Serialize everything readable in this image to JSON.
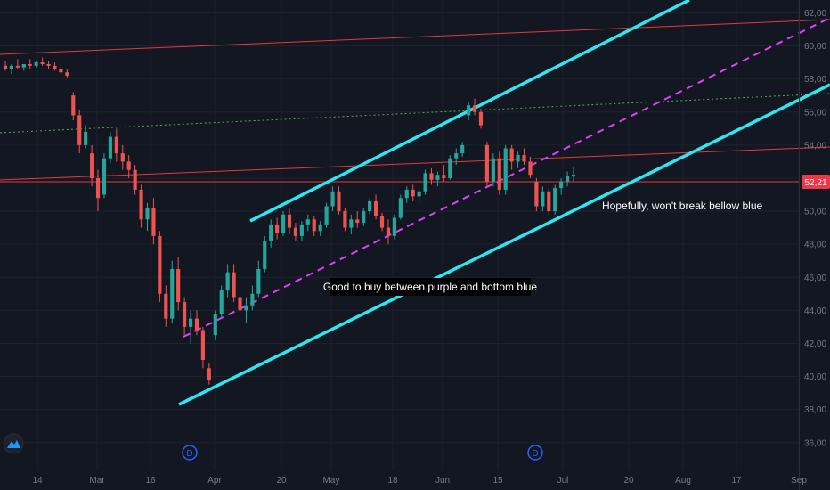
{
  "chart_data": {
    "type": "candlestick",
    "yaxis": {
      "ticks": [
        "36,00",
        "38,00",
        "40,00",
        "42,00",
        "44,00",
        "46,00",
        "48,00",
        "50,00",
        "52,00",
        "54,00",
        "56,00",
        "58,00",
        "60,00",
        "62,00"
      ],
      "ylim": [
        35.2,
        62.8
      ]
    },
    "xaxis": {
      "ticks": [
        "14",
        "Mar",
        "16",
        "Apr",
        "20",
        "May",
        "18",
        "Jun",
        "15",
        "Jul",
        "20",
        "Aug",
        "17",
        "Sep"
      ]
    },
    "current_price": {
      "label": "52,21",
      "value": 52.21,
      "color": "#f23645"
    },
    "colors": {
      "up": "#26a69a",
      "down": "#ef5350",
      "channel": "#2ee6f0",
      "midline": "#e040fb",
      "resistance": "#e53935",
      "green_dotted": "#4caf50"
    },
    "annotations": [
      {
        "text": "Good to buy between purple and bottom blue",
        "style": "boxed"
      },
      {
        "text": "Hopefully, won't break bellow blue",
        "style": "plain"
      }
    ],
    "markers": [
      "D",
      "D"
    ],
    "candles": [
      [
        58.8,
        59.1,
        58.5,
        58.6
      ],
      [
        58.6,
        58.9,
        58.3,
        58.8
      ],
      [
        58.8,
        59.2,
        58.6,
        58.7
      ],
      [
        58.7,
        58.9,
        58.5,
        58.9
      ],
      [
        58.9,
        59.2,
        58.6,
        58.8
      ],
      [
        58.8,
        59.1,
        58.7,
        59.0
      ],
      [
        59.0,
        59.3,
        58.8,
        58.9
      ],
      [
        58.9,
        59.1,
        58.6,
        58.8
      ],
      [
        58.8,
        59.0,
        58.5,
        58.6
      ],
      [
        58.6,
        58.9,
        58.3,
        58.4
      ],
      [
        58.4,
        58.6,
        58.1,
        58.2
      ],
      [
        57.0,
        57.2,
        55.5,
        55.8
      ],
      [
        55.8,
        56.1,
        53.5,
        54.0
      ],
      [
        54.0,
        55.2,
        53.8,
        54.8
      ],
      [
        53.5,
        54.0,
        51.5,
        52.0
      ],
      [
        52.0,
        52.5,
        50.0,
        50.8
      ],
      [
        51.0,
        53.5,
        50.8,
        53.2
      ],
      [
        53.2,
        54.8,
        52.9,
        54.5
      ],
      [
        54.5,
        55.0,
        53.0,
        53.5
      ],
      [
        53.5,
        54.0,
        52.5,
        53.0
      ],
      [
        53.0,
        53.4,
        52.0,
        52.5
      ],
      [
        52.5,
        52.8,
        51.0,
        51.3
      ],
      [
        51.3,
        51.6,
        49.0,
        49.5
      ],
      [
        49.5,
        50.5,
        48.8,
        50.2
      ],
      [
        50.2,
        50.8,
        48.0,
        48.5
      ],
      [
        48.5,
        48.8,
        44.5,
        45.0
      ],
      [
        45.0,
        45.5,
        43.0,
        43.5
      ],
      [
        43.5,
        47.0,
        43.2,
        46.5
      ],
      [
        46.5,
        47.2,
        44.0,
        44.5
      ],
      [
        44.5,
        44.8,
        42.5,
        43.0
      ],
      [
        43.0,
        44.0,
        42.0,
        43.5
      ],
      [
        43.5,
        44.0,
        42.5,
        42.8
      ],
      [
        42.8,
        43.0,
        40.5,
        41.0
      ],
      [
        40.5,
        40.8,
        39.5,
        39.8
      ],
      [
        42.5,
        44.0,
        42.2,
        43.8
      ],
      [
        43.8,
        45.5,
        43.5,
        45.2
      ],
      [
        45.2,
        46.8,
        44.8,
        46.3
      ],
      [
        46.3,
        46.8,
        44.5,
        44.8
      ],
      [
        44.8,
        45.0,
        43.5,
        44.0
      ],
      [
        44.0,
        44.8,
        43.2,
        44.3
      ],
      [
        44.3,
        45.5,
        44.0,
        45.0
      ],
      [
        45.0,
        47.0,
        44.8,
        46.5
      ],
      [
        46.5,
        48.5,
        46.3,
        48.2
      ],
      [
        48.2,
        49.5,
        47.8,
        49.2
      ],
      [
        49.2,
        49.6,
        48.3,
        48.7
      ],
      [
        48.7,
        50.0,
        48.5,
        49.8
      ],
      [
        49.8,
        50.2,
        48.6,
        49.0
      ],
      [
        49.0,
        49.3,
        48.2,
        48.5
      ],
      [
        48.5,
        49.4,
        48.2,
        49.2
      ],
      [
        49.2,
        49.8,
        48.8,
        49.5
      ],
      [
        49.5,
        49.7,
        48.5,
        48.8
      ],
      [
        48.8,
        49.4,
        48.5,
        49.2
      ],
      [
        49.2,
        50.5,
        49.0,
        50.3
      ],
      [
        50.3,
        51.5,
        50.0,
        51.2
      ],
      [
        51.2,
        51.5,
        49.8,
        50.0
      ],
      [
        50.0,
        50.2,
        48.8,
        49.0
      ],
      [
        49.0,
        49.8,
        48.6,
        49.5
      ],
      [
        49.5,
        50.0,
        49.0,
        49.3
      ],
      [
        49.3,
        50.2,
        49.1,
        50.0
      ],
      [
        50.0,
        50.8,
        49.8,
        50.6
      ],
      [
        50.6,
        51.0,
        49.5,
        49.7
      ],
      [
        49.7,
        49.9,
        48.8,
        49.0
      ],
      [
        49.0,
        49.5,
        48.0,
        48.5
      ],
      [
        48.5,
        49.8,
        48.3,
        49.6
      ],
      [
        49.6,
        51.0,
        49.5,
        50.8
      ],
      [
        50.8,
        51.5,
        50.5,
        51.3
      ],
      [
        51.3,
        51.6,
        50.6,
        50.9
      ],
      [
        50.9,
        51.4,
        50.5,
        51.2
      ],
      [
        51.2,
        52.5,
        51.0,
        52.3
      ],
      [
        52.3,
        52.6,
        51.6,
        51.9
      ],
      [
        51.9,
        52.4,
        51.5,
        52.2
      ],
      [
        52.2,
        52.8,
        51.8,
        52.0
      ],
      [
        52.0,
        53.4,
        51.9,
        53.2
      ],
      [
        53.2,
        53.8,
        52.8,
        53.5
      ],
      [
        53.5,
        54.2,
        53.3,
        54.0
      ],
      [
        55.8,
        56.6,
        55.5,
        56.4
      ],
      [
        56.4,
        56.8,
        55.8,
        56.0
      ],
      [
        56.0,
        56.2,
        55.0,
        55.2
      ],
      [
        54.0,
        54.2,
        51.5,
        51.8
      ],
      [
        51.8,
        53.5,
        51.5,
        53.2
      ],
      [
        53.2,
        53.6,
        51.0,
        51.3
      ],
      [
        51.3,
        54.0,
        51.0,
        53.8
      ],
      [
        53.8,
        54.0,
        52.5,
        53.0
      ],
      [
        53.0,
        53.6,
        52.6,
        53.4
      ],
      [
        53.4,
        53.8,
        52.8,
        53.0
      ],
      [
        53.0,
        53.3,
        52.0,
        52.2
      ],
      [
        51.8,
        52.0,
        50.0,
        50.3
      ],
      [
        50.3,
        51.5,
        50.0,
        51.2
      ],
      [
        51.2,
        51.4,
        49.8,
        50.0
      ],
      [
        50.0,
        51.6,
        49.8,
        51.4
      ],
      [
        51.4,
        52.0,
        51.0,
        51.8
      ],
      [
        51.8,
        52.4,
        51.5,
        52.1
      ],
      [
        52.1,
        52.7,
        51.8,
        52.21
      ]
    ]
  }
}
